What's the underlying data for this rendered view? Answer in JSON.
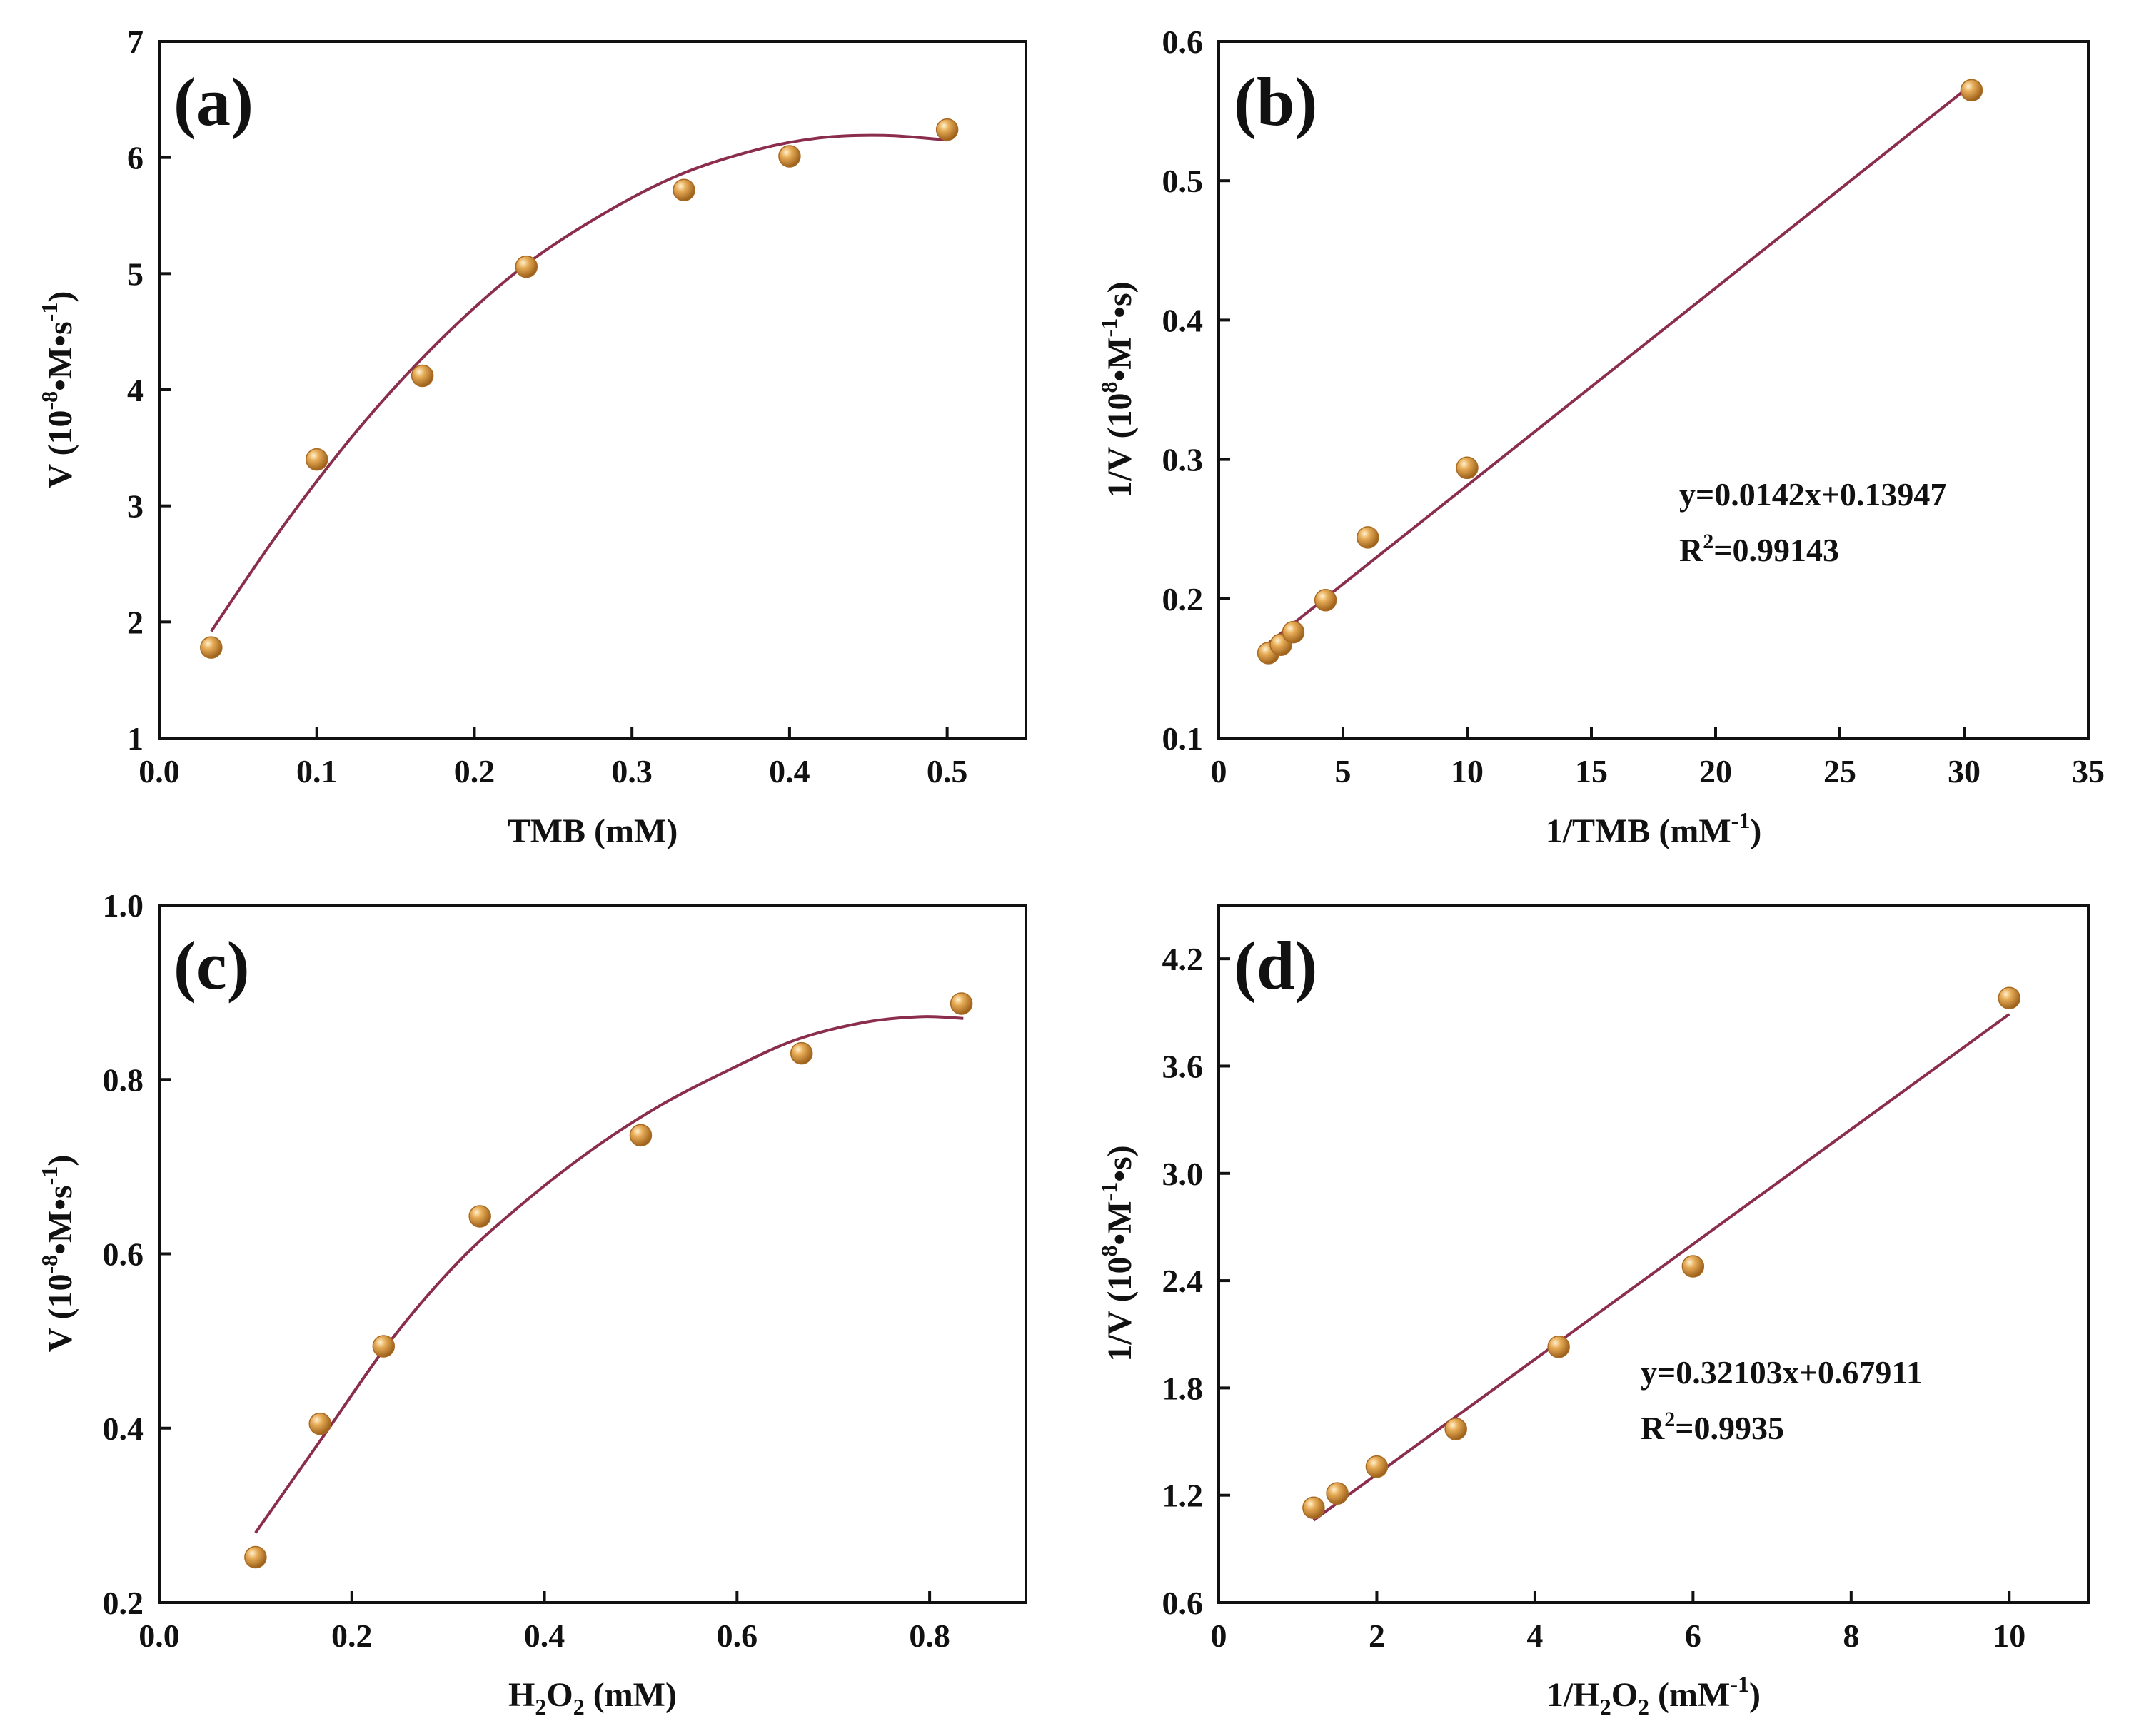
{
  "figure_title": "",
  "colors": {
    "curve": "#8b2e4d",
    "marker": "#d08c3c",
    "marker_edge": "#a86a22",
    "axis": "#111111"
  },
  "chart_data": [
    {
      "panel": "(a)",
      "type": "scatter",
      "fit": "polynomial",
      "xlabel": {
        "main": "TMB (mM)"
      },
      "ylabel": {
        "pre": "V (10",
        "sup1": "-8",
        "mid": "•M•s",
        "sup2": "-1",
        "post": ")"
      },
      "xlim": [
        0,
        0.55
      ],
      "ylim": [
        1,
        7
      ],
      "xticks": [
        0.0,
        0.1,
        0.2,
        0.3,
        0.4,
        0.5
      ],
      "yticks": [
        1,
        2,
        3,
        4,
        5,
        6,
        7
      ],
      "xtick_labels": [
        "0.0",
        "0.1",
        "0.2",
        "0.3",
        "0.4",
        "0.5"
      ],
      "ytick_labels": [
        "1",
        "2",
        "3",
        "4",
        "5",
        "6",
        "7"
      ],
      "x": [
        0.033,
        0.1,
        0.167,
        0.233,
        0.333,
        0.4,
        0.5
      ],
      "y": [
        1.78,
        3.4,
        4.12,
        5.06,
        5.72,
        6.01,
        6.24
      ],
      "fit_curve": {
        "x": [
          0.033,
          0.08,
          0.13,
          0.18,
          0.23,
          0.28,
          0.33,
          0.38,
          0.42,
          0.46,
          0.5
        ],
        "y": [
          1.92,
          2.85,
          3.72,
          4.45,
          5.05,
          5.5,
          5.85,
          6.07,
          6.17,
          6.19,
          6.15
        ]
      }
    },
    {
      "panel": "(b)",
      "type": "scatter",
      "fit": "linear",
      "xlabel": {
        "pre": "1/TMB (mM",
        "sup": "-1",
        "post": ")"
      },
      "ylabel": {
        "pre": "1/V (10",
        "sup1": "8",
        "mid": "•M",
        "sup2": "-1",
        "post": "•s)"
      },
      "xlim": [
        0,
        35
      ],
      "ylim": [
        0.1,
        0.6
      ],
      "xticks": [
        0,
        5,
        10,
        15,
        20,
        25,
        30,
        35
      ],
      "yticks": [
        0.1,
        0.2,
        0.3,
        0.4,
        0.5,
        0.6
      ],
      "xtick_labels": [
        "0",
        "5",
        "10",
        "15",
        "20",
        "25",
        "30",
        "35"
      ],
      "ytick_labels": [
        "0.1",
        "0.2",
        "0.3",
        "0.4",
        "0.5",
        "0.6"
      ],
      "x": [
        2.0,
        2.5,
        3.0,
        4.3,
        6.0,
        10.0,
        30.3
      ],
      "y": [
        0.161,
        0.167,
        0.176,
        0.199,
        0.244,
        0.294,
        0.565
      ],
      "fit_line": {
        "x": [
          2.0,
          30.3
        ],
        "y": [
          0.168,
          0.569
        ]
      },
      "equation": "y=0.0142x+0.13947",
      "r2": {
        "pre": "R",
        "sup": "2",
        "post": "=0.99143"
      }
    },
    {
      "panel": "(c)",
      "type": "scatter",
      "fit": "polynomial",
      "xlabel": {
        "pre": "H",
        "sub1": "2",
        "mid": "O",
        "sub2": "2",
        "post": " (mM)"
      },
      "ylabel": {
        "pre": "V (10",
        "sup1": "-8",
        "mid": "•M•s",
        "sup2": "-1",
        "post": ")"
      },
      "xlim": [
        0,
        0.9
      ],
      "ylim": [
        0.2,
        1.0
      ],
      "xticks": [
        0.0,
        0.2,
        0.4,
        0.6,
        0.8
      ],
      "yticks": [
        0.2,
        0.4,
        0.6,
        0.8,
        1.0
      ],
      "xtick_labels": [
        "0.0",
        "0.2",
        "0.4",
        "0.6",
        "0.8"
      ],
      "ytick_labels": [
        "0.2",
        "0.4",
        "0.6",
        "0.8",
        "1.0"
      ],
      "x": [
        0.1,
        0.167,
        0.233,
        0.333,
        0.5,
        0.667,
        0.833
      ],
      "y": [
        0.252,
        0.405,
        0.494,
        0.643,
        0.736,
        0.83,
        0.887
      ],
      "fit_curve": {
        "x": [
          0.1,
          0.17,
          0.24,
          0.31,
          0.38,
          0.45,
          0.52,
          0.59,
          0.66,
          0.73,
          0.79,
          0.835
        ],
        "y": [
          0.28,
          0.39,
          0.5,
          0.59,
          0.66,
          0.72,
          0.77,
          0.81,
          0.845,
          0.865,
          0.872,
          0.87
        ]
      }
    },
    {
      "panel": "(d)",
      "type": "scatter",
      "fit": "linear",
      "xlabel": {
        "pre": "1/H",
        "sub1": "2",
        "mid": "O",
        "sub2": "2",
        "post": " (mM",
        "sup": "-1",
        "end": ")"
      },
      "ylabel": {
        "pre": "1/V (10",
        "sup1": "8",
        "mid": "•M",
        "sup2": "-1",
        "post": "•s)"
      },
      "xlim": [
        0,
        11
      ],
      "ylim": [
        0.6,
        4.5
      ],
      "xticks": [
        0,
        2,
        4,
        6,
        8,
        10
      ],
      "yticks": [
        0.6,
        1.2,
        1.8,
        2.4,
        3.0,
        3.6,
        4.2
      ],
      "xtick_labels": [
        "0",
        "2",
        "4",
        "6",
        "8",
        "10"
      ],
      "ytick_labels": [
        "0.6",
        "1.2",
        "1.8",
        "2.4",
        "3.0",
        "3.6",
        "4.2"
      ],
      "x": [
        1.2,
        1.5,
        2.0,
        3.0,
        4.3,
        6.0,
        10.0
      ],
      "y": [
        1.13,
        1.21,
        1.36,
        1.57,
        2.03,
        2.48,
        3.98
      ],
      "fit_line": {
        "x": [
          1.2,
          10.0
        ],
        "y": [
          1.06,
          3.89
        ]
      },
      "equation": "y=0.32103x+0.67911",
      "r2": {
        "pre": "R",
        "sup": "2",
        "post": "=0.9935"
      }
    }
  ]
}
